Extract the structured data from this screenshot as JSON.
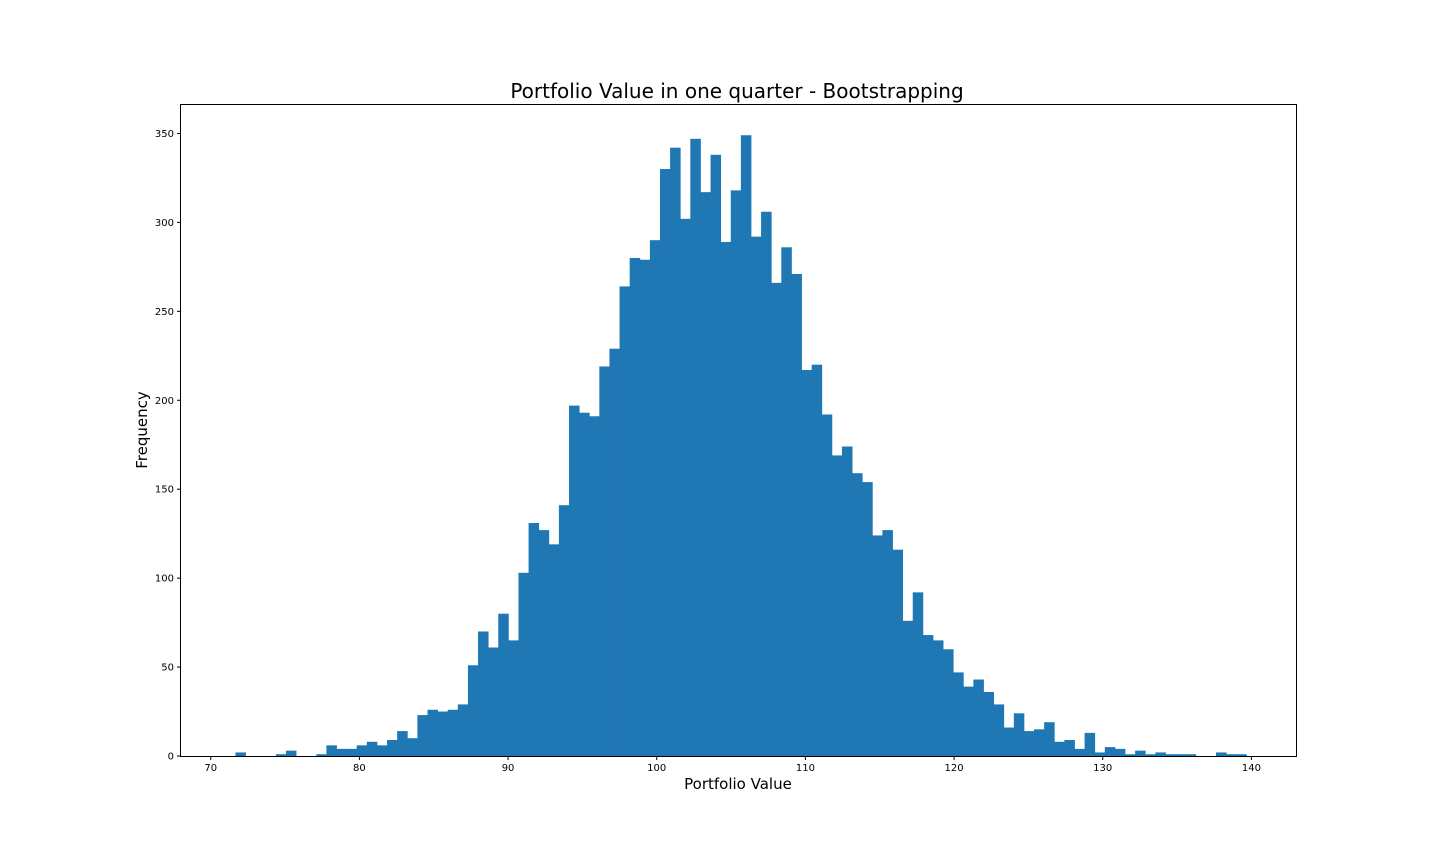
{
  "chart_data": {
    "type": "bar",
    "title": "Portfolio Value in one quarter - Bootstrapping",
    "xlabel": "Portfolio Value",
    "ylabel": "Frequency",
    "xlim": [
      68,
      143
    ],
    "ylim": [
      0,
      366
    ],
    "xticks": [
      70,
      80,
      90,
      100,
      110,
      120,
      130,
      140
    ],
    "yticks": [
      0,
      50,
      100,
      150,
      200,
      250,
      300,
      350
    ],
    "bar_color": "#1f77b4",
    "grid": false,
    "legend": "none",
    "bins": {
      "start": 70.3,
      "width": 0.68,
      "counts": [
        0,
        0,
        2,
        0,
        0,
        0,
        1,
        3,
        0,
        0,
        1,
        6,
        4,
        4,
        6,
        8,
        6,
        9,
        14,
        10,
        23,
        26,
        25,
        26,
        29,
        51,
        70,
        61,
        80,
        65,
        103,
        131,
        127,
        119,
        141,
        197,
        193,
        191,
        219,
        229,
        264,
        280,
        279,
        290,
        330,
        342,
        302,
        347,
        317,
        338,
        289,
        318,
        349,
        292,
        306,
        266,
        286,
        271,
        217,
        220,
        192,
        169,
        174,
        159,
        154,
        124,
        127,
        116,
        76,
        92,
        68,
        65,
        60,
        47,
        39,
        43,
        36,
        29,
        16,
        24,
        14,
        15,
        19,
        8,
        9,
        4,
        13,
        2,
        5,
        4,
        1,
        3,
        1,
        2,
        1,
        1,
        1,
        0,
        0,
        2,
        1,
        1
      ]
    }
  }
}
